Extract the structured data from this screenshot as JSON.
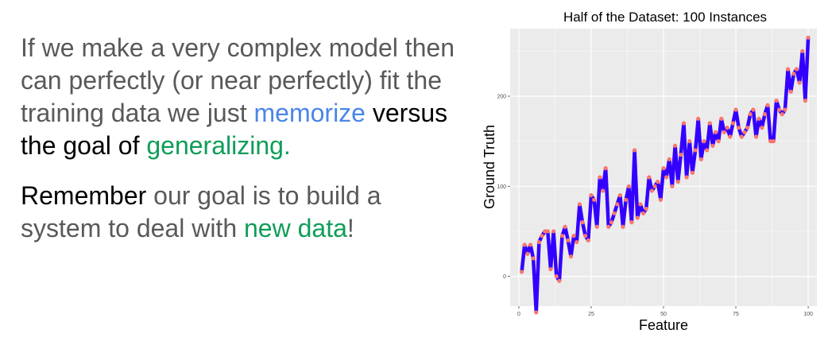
{
  "text": {
    "p1": {
      "pre": "If we make a very complex model then can perfectly (or near perfectly) fit the training data we just ",
      "memorize": "memorize",
      "mid": " versus the goal of ",
      "generalizing": "generalizing",
      "post": "."
    },
    "p2": {
      "remember": "Remember",
      "mid": " our goal is to build a system to deal with ",
      "new_data": "new data",
      "post": "!"
    }
  },
  "colors": {
    "body_text": "#595959",
    "emphasis_black": "#000000",
    "blue_highlight": "#4a86e8",
    "green_highlight": "#0f9d58",
    "panel_bg": "#ebebeb",
    "grid": "#ffffff",
    "line": "#3300ff",
    "points": "#f8766d"
  },
  "chart_data": {
    "type": "line",
    "title": "Half of the Dataset: 100 Instances",
    "xlabel": "Feature",
    "ylabel": "Ground Truth",
    "xlim": [
      -3,
      103
    ],
    "ylim": [
      -33,
      275
    ],
    "xticks": [
      0,
      25,
      50,
      75,
      100
    ],
    "yticks": [
      0,
      100,
      200
    ],
    "grid": true,
    "x": [
      1,
      2,
      3,
      4,
      5,
      6,
      7,
      8,
      9,
      10,
      11,
      12,
      13,
      14,
      15,
      16,
      17,
      18,
      19,
      20,
      21,
      22,
      23,
      24,
      25,
      26,
      27,
      28,
      29,
      30,
      31,
      32,
      33,
      34,
      35,
      36,
      37,
      38,
      39,
      40,
      41,
      42,
      43,
      44,
      45,
      46,
      47,
      48,
      49,
      50,
      51,
      52,
      53,
      54,
      55,
      56,
      57,
      58,
      59,
      60,
      61,
      62,
      63,
      64,
      65,
      66,
      67,
      68,
      69,
      70,
      71,
      72,
      73,
      74,
      75,
      76,
      77,
      78,
      79,
      80,
      81,
      82,
      83,
      84,
      85,
      86,
      87,
      88,
      89,
      90,
      91,
      92,
      93,
      94,
      95,
      96,
      97,
      98,
      99,
      100
    ],
    "series": [
      {
        "values": [
          5,
          35,
          25,
          35,
          20,
          -40,
          38,
          45,
          50,
          50,
          8,
          50,
          0,
          -5,
          45,
          55,
          40,
          22,
          45,
          38,
          80,
          60,
          45,
          40,
          90,
          85,
          55,
          110,
          95,
          120,
          55,
          60,
          70,
          80,
          90,
          55,
          85,
          100,
          60,
          140,
          65,
          80,
          70,
          75,
          110,
          95,
          100,
          105,
          85,
          120,
          110,
          130,
          100,
          145,
          105,
          135,
          170,
          110,
          150,
          115,
          140,
          175,
          130,
          150,
          140,
          170,
          145,
          160,
          150,
          175,
          160,
          165,
          155,
          170,
          185,
          165,
          155,
          160,
          165,
          180,
          185,
          155,
          175,
          165,
          180,
          190,
          150,
          150,
          195,
          185,
          180,
          185,
          230,
          205,
          225,
          230,
          215,
          250,
          195,
          265
        ]
      }
    ]
  }
}
